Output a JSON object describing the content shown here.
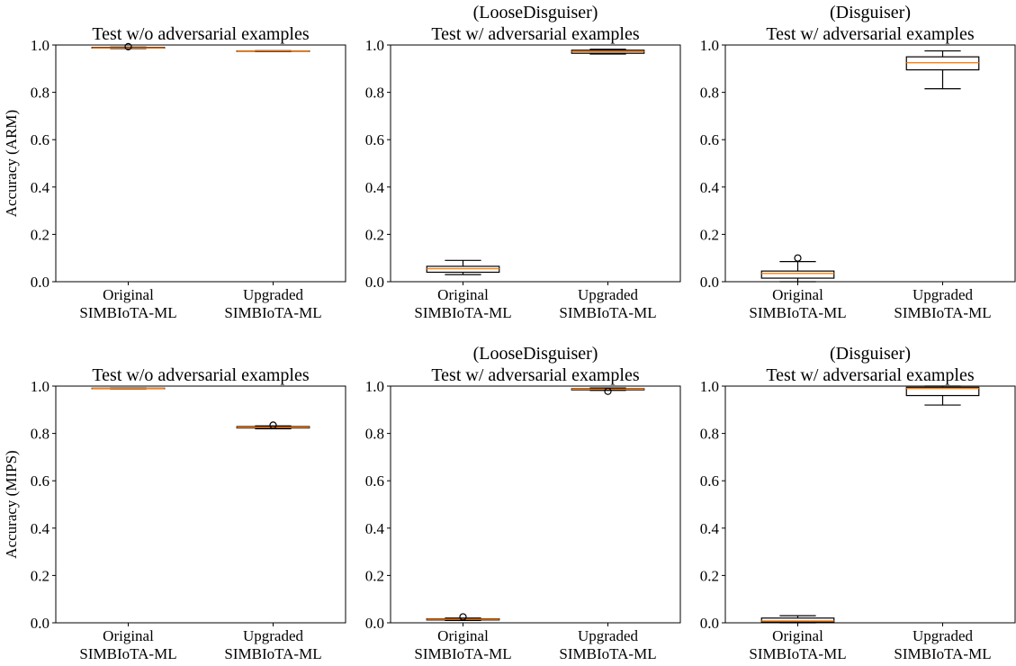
{
  "chart_data": [
    {
      "type": "box",
      "title": "Test w/o adversarial examples",
      "ylabel": "Accuracy (ARM)",
      "categories": [
        "Original\nSIMBIoTA-ML",
        "Upgraded\nSIMBIoTA-ML"
      ],
      "boxes": [
        {
          "whislo": 0.985,
          "q1": 0.987,
          "med": 0.988,
          "q3": 0.99,
          "whishi": 0.991,
          "fliers": [
            0.993
          ]
        },
        {
          "whislo": 0.972,
          "q1": 0.973,
          "med": 0.974,
          "q3": 0.975,
          "whishi": 0.976,
          "fliers": []
        }
      ],
      "box_color": "#000000",
      "median_color": "#ff7f0e",
      "ylim": [
        0,
        1
      ],
      "yticks": [
        {
          "value": 0,
          "label": "0.0"
        },
        0.2,
        0.4,
        0.6,
        0.8,
        {
          "value": 1,
          "label": "1.0"
        }
      ]
    },
    {
      "type": "box",
      "subtitle": "(LooseDisguiser)",
      "title": "Test w/ adversarial examples",
      "categories": [
        "Original\nSIMBIoTA-ML",
        "Upgraded\nSIMBIoTA-ML"
      ],
      "boxes": [
        {
          "whislo": 0.03,
          "q1": 0.04,
          "med": 0.055,
          "q3": 0.065,
          "whishi": 0.09,
          "fliers": []
        },
        {
          "whislo": 0.962,
          "q1": 0.965,
          "med": 0.972,
          "q3": 0.978,
          "whishi": 0.982,
          "fliers": []
        }
      ],
      "box_color": "#000000",
      "median_color": "#ff7f0e",
      "ylim": [
        0,
        1
      ],
      "yticks": [
        {
          "value": 0,
          "label": "0.0"
        },
        0.2,
        0.4,
        0.6,
        0.8,
        {
          "value": 1,
          "label": "1.0"
        }
      ]
    },
    {
      "type": "box",
      "subtitle": "(Disguiser)",
      "title": "Test w/ adversarial examples",
      "categories": [
        "Original\nSIMBIoTA-ML",
        "Upgraded\nSIMBIoTA-ML"
      ],
      "boxes": [
        {
          "whislo": 0.0,
          "q1": 0.015,
          "med": 0.035,
          "q3": 0.045,
          "whishi": 0.085,
          "fliers": [
            0.1
          ]
        },
        {
          "whislo": 0.815,
          "q1": 0.895,
          "med": 0.925,
          "q3": 0.95,
          "whishi": 0.975,
          "fliers": []
        }
      ],
      "box_color": "#000000",
      "median_color": "#ff7f0e",
      "ylim": [
        0,
        1
      ],
      "yticks": [
        {
          "value": 0,
          "label": "0.0"
        },
        0.2,
        0.4,
        0.6,
        0.8,
        {
          "value": 1,
          "label": "1.0"
        }
      ]
    },
    {
      "type": "box",
      "title": "Test w/o adversarial examples",
      "ylabel": "Accuracy (MIPS)",
      "categories": [
        "Original\nSIMBIoTA-ML",
        "Upgraded\nSIMBIoTA-ML"
      ],
      "boxes": [
        {
          "whislo": 0.988,
          "q1": 0.989,
          "med": 0.99,
          "q3": 0.991,
          "whishi": 0.992,
          "fliers": []
        },
        {
          "whislo": 0.82,
          "q1": 0.823,
          "med": 0.826,
          "q3": 0.829,
          "whishi": 0.832,
          "fliers": [
            0.835
          ]
        }
      ],
      "box_color": "#000000",
      "median_color": "#ff7f0e",
      "ylim": [
        0,
        1
      ],
      "yticks": [
        {
          "value": 0,
          "label": "0.0"
        },
        0.2,
        0.4,
        0.6,
        0.8,
        {
          "value": 1,
          "label": "1.0"
        }
      ]
    },
    {
      "type": "box",
      "subtitle": "(LooseDisguiser)",
      "title": "Test w/ adversarial examples",
      "categories": [
        "Original\nSIMBIoTA-ML",
        "Upgraded\nSIMBIoTA-ML"
      ],
      "boxes": [
        {
          "whislo": 0.01,
          "q1": 0.012,
          "med": 0.015,
          "q3": 0.017,
          "whishi": 0.02,
          "fliers": [
            0.025
          ]
        },
        {
          "whislo": 0.982,
          "q1": 0.984,
          "med": 0.987,
          "q3": 0.989,
          "whishi": 0.992,
          "fliers": [
            0.978
          ]
        }
      ],
      "box_color": "#000000",
      "median_color": "#ff7f0e",
      "ylim": [
        0,
        1
      ],
      "yticks": [
        {
          "value": 0,
          "label": "0.0"
        },
        0.2,
        0.4,
        0.6,
        0.8,
        {
          "value": 1,
          "label": "1.0"
        }
      ]
    },
    {
      "type": "box",
      "subtitle": "(Disguiser)",
      "title": "Test w/ adversarial examples",
      "categories": [
        "Original\nSIMBIoTA-ML",
        "Upgraded\nSIMBIoTA-ML"
      ],
      "boxes": [
        {
          "whislo": 0.0,
          "q1": 0.003,
          "med": 0.008,
          "q3": 0.02,
          "whishi": 0.03,
          "fliers": []
        },
        {
          "whislo": 0.92,
          "q1": 0.96,
          "med": 0.99,
          "q3": 0.995,
          "whishi": 1.0,
          "fliers": []
        }
      ],
      "box_color": "#000000",
      "median_color": "#ff7f0e",
      "ylim": [
        0,
        1
      ],
      "yticks": [
        {
          "value": 0,
          "label": "0.0"
        },
        0.2,
        0.4,
        0.6,
        0.8,
        {
          "value": 1,
          "label": "1.0"
        }
      ]
    }
  ]
}
